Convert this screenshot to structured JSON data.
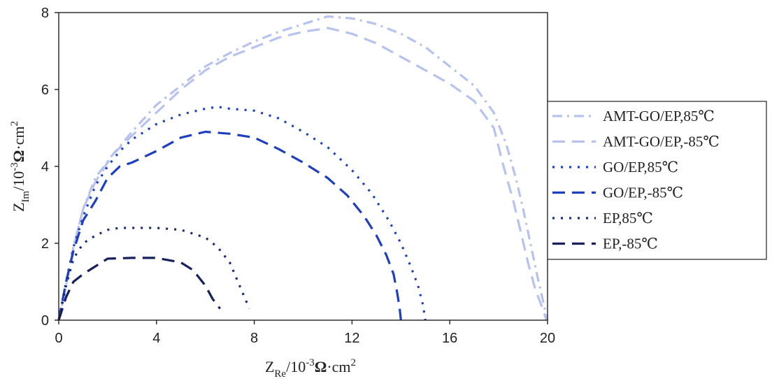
{
  "chart_data": {
    "type": "line",
    "title": "",
    "xlabel": {
      "main": "Z",
      "sub": "Re",
      "unit_prefix": "/10",
      "exp": "-3",
      "unit": "Ω·cm",
      "unit_exp": "2"
    },
    "ylabel": {
      "main": "Z",
      "sub": "Im",
      "unit_prefix": "/10",
      "exp": "-3",
      "unit": "Ω·cm",
      "unit_exp": "2"
    },
    "xlim": [
      0,
      20
    ],
    "ylim": [
      0,
      8
    ],
    "xticks": [
      0,
      4,
      8,
      12,
      16,
      20
    ],
    "yticks": [
      0,
      2,
      4,
      6,
      8
    ],
    "xtick_labels": [
      "0",
      "4",
      "8",
      "12",
      "16",
      "20"
    ],
    "ytick_labels": [
      "0",
      "2",
      "4",
      "6",
      "8"
    ],
    "grid": false,
    "legend_position": "right",
    "series": [
      {
        "name": "AMT-GO/EP,85℃",
        "color": "#b7c2ee",
        "dash": "dashdot",
        "x": [
          0.0,
          0.3,
          0.6,
          1.0,
          1.5,
          2.2,
          3.0,
          4.0,
          5.0,
          6.0,
          7.0,
          8.0,
          9.0,
          10.0,
          11.0,
          12.0,
          13.0,
          14.0,
          15.0,
          16.0,
          17.0,
          17.8,
          18.3,
          18.7,
          19.0,
          19.3,
          19.6,
          19.85,
          20.0
        ],
        "y": [
          0.0,
          0.9,
          1.9,
          2.9,
          3.7,
          4.3,
          4.9,
          5.6,
          6.1,
          6.6,
          6.95,
          7.25,
          7.5,
          7.7,
          7.9,
          7.85,
          7.7,
          7.45,
          7.1,
          6.6,
          6.1,
          5.4,
          4.6,
          3.7,
          2.9,
          2.0,
          1.1,
          0.4,
          0.0
        ]
      },
      {
        "name": "AMT-GO/EP,-85℃",
        "color": "#b7c2ee",
        "dash": "dash",
        "x": [
          0.0,
          0.3,
          0.6,
          1.0,
          1.5,
          2.2,
          3.0,
          4.0,
          5.0,
          6.0,
          7.0,
          8.0,
          9.0,
          10.0,
          11.0,
          12.0,
          13.0,
          14.0,
          15.0,
          16.0,
          17.0,
          17.8,
          18.2,
          18.6,
          18.9,
          19.2,
          19.5,
          19.8,
          19.95
        ],
        "y": [
          0.0,
          0.9,
          1.9,
          2.9,
          3.6,
          4.3,
          4.8,
          5.4,
          6.0,
          6.5,
          6.85,
          7.1,
          7.35,
          7.5,
          7.6,
          7.45,
          7.2,
          6.85,
          6.5,
          6.15,
          5.7,
          5.0,
          4.0,
          3.1,
          2.3,
          1.5,
          0.8,
          0.3,
          0.0
        ]
      },
      {
        "name": "GO/EP,85℃",
        "color": "#1f3fc1",
        "dash": "dot",
        "x": [
          0.0,
          0.3,
          0.6,
          1.0,
          1.5,
          2.0,
          2.5,
          3.0,
          4.0,
          5.0,
          6.0,
          6.5,
          7.0,
          8.0,
          9.0,
          10.0,
          11.0,
          12.0,
          12.8,
          13.5,
          14.0,
          14.4,
          14.7,
          14.9,
          15.0
        ],
        "y": [
          0.0,
          1.0,
          1.9,
          2.7,
          3.5,
          4.0,
          4.4,
          4.7,
          5.1,
          5.35,
          5.5,
          5.55,
          5.5,
          5.45,
          5.25,
          4.9,
          4.5,
          3.9,
          3.3,
          2.6,
          2.0,
          1.4,
          0.9,
          0.4,
          0.0
        ]
      },
      {
        "name": "GO/EP,-85℃",
        "color": "#1f3fc1",
        "dash": "dash",
        "x": [
          0.0,
          0.3,
          0.6,
          1.0,
          1.5,
          2.0,
          2.5,
          3.0,
          4.0,
          5.0,
          6.0,
          7.0,
          8.0,
          9.0,
          10.0,
          11.0,
          11.8,
          12.5,
          13.0,
          13.4,
          13.7,
          13.85,
          13.95,
          14.0
        ],
        "y": [
          0.0,
          1.0,
          1.8,
          2.6,
          3.1,
          3.7,
          4.0,
          4.1,
          4.4,
          4.75,
          4.9,
          4.85,
          4.75,
          4.45,
          4.1,
          3.7,
          3.25,
          2.7,
          2.2,
          1.7,
          1.2,
          0.7,
          0.3,
          0.0
        ]
      },
      {
        "name": "EP,85℃",
        "color": "#1a2a78",
        "dash": "dot",
        "x": [
          0.0,
          0.3,
          0.6,
          1.0,
          1.5,
          2.0,
          2.5,
          3.0,
          4.0,
          5.0,
          6.0,
          6.5,
          7.0,
          7.3,
          7.6,
          7.8
        ],
        "y": [
          0.0,
          0.9,
          1.6,
          2.0,
          2.2,
          2.35,
          2.4,
          2.4,
          2.4,
          2.35,
          2.15,
          1.9,
          1.5,
          1.05,
          0.6,
          0.3
        ]
      },
      {
        "name": "EP,-85℃",
        "color": "#15205c",
        "dash": "dash",
        "x": [
          0.0,
          0.3,
          0.6,
          1.0,
          1.5,
          2.0,
          3.0,
          4.0,
          5.0,
          5.5,
          6.0,
          6.3,
          6.6
        ],
        "y": [
          0.0,
          0.6,
          1.0,
          1.2,
          1.4,
          1.6,
          1.62,
          1.62,
          1.5,
          1.3,
          0.9,
          0.55,
          0.3
        ]
      }
    ]
  }
}
